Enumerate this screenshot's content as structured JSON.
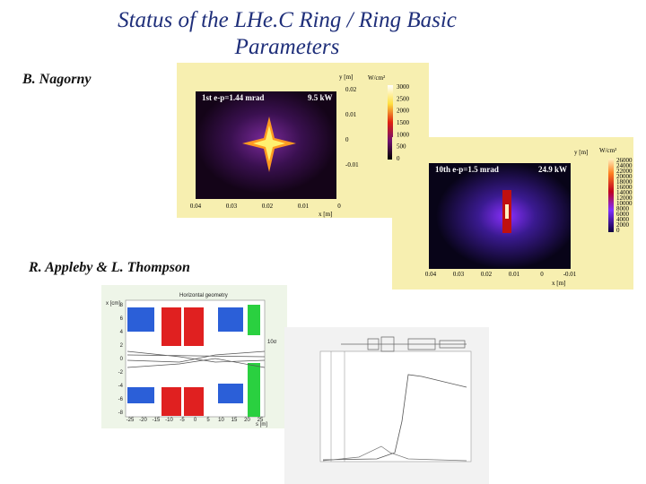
{
  "title": [
    "Status of the LHe.C Ring / Ring Basic",
    "Parameters"
  ],
  "authors": [
    "B. Nagorny",
    "R. Appleby & L. Thompson"
  ],
  "figures": [
    {
      "heading": "1st  e-p=1.44 mrad",
      "power": "9.5 kW",
      "y_label": "y [m]",
      "x_label": "x [m]",
      "unit": "W/cm²",
      "colorbar_ticks": [
        "3000",
        "2500",
        "2000",
        "1500",
        "1000",
        "500",
        "0"
      ],
      "y_ticks": [
        "0.02",
        "0.01",
        "0",
        "-0.01"
      ],
      "x_ticks": [
        "0.04",
        "0.03",
        "0.02",
        "0.01",
        "0"
      ]
    },
    {
      "heading": "10th  e-p=1.5 mrad",
      "power": "24.9 kW",
      "y_label": "y [m]",
      "x_label": "x [m]",
      "unit": "W/cm²",
      "colorbar_ticks": [
        "26000",
        "24000",
        "22000",
        "20000",
        "18000",
        "16000",
        "14000",
        "12000",
        "10000",
        "8000",
        "6000",
        "4000",
        "2000",
        "0"
      ],
      "x_ticks": [
        "0.04",
        "0.03",
        "0.02",
        "0.01",
        "0",
        "-0.01"
      ]
    },
    {
      "title": "Horizontal geometry",
      "beam_label": "10σ",
      "y_label": "x [cm]",
      "x_label": "s [m]",
      "y_ticks": [
        "8",
        "6",
        "4",
        "2",
        "0",
        "-2",
        "-4",
        "-6",
        "-8"
      ],
      "x_ticks": [
        "-25",
        "-20",
        "-15",
        "-10",
        "-5",
        "0",
        "5",
        "10",
        "15",
        "20",
        "25"
      ]
    }
  ]
}
